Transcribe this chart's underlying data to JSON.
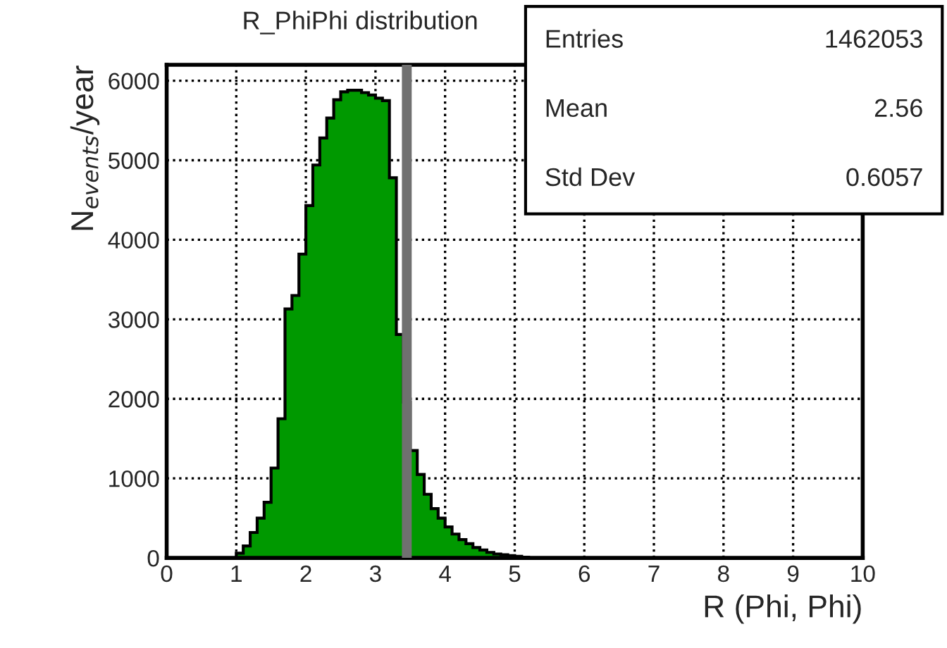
{
  "chart_data": {
    "type": "histogram",
    "title": "R_PhiPhi distribution",
    "xlabel": "R (Phi, Phi)",
    "ylabel": "N$_{events}$/year",
    "bins": [
      1.0,
      1.1,
      1.2,
      1.3,
      1.4,
      1.5,
      1.6,
      1.7,
      1.8,
      1.9,
      2.0,
      2.1,
      2.2,
      2.3,
      2.4,
      2.5,
      2.6,
      2.7,
      2.8,
      2.9,
      3.0,
      3.1,
      3.2,
      3.3,
      3.4,
      3.5,
      3.6,
      3.7,
      3.8,
      3.9,
      4.0,
      4.1,
      4.2,
      4.3,
      4.4,
      4.5,
      4.6,
      4.7,
      4.8,
      4.9,
      5.0,
      5.1,
      5.2
    ],
    "values": [
      60,
      150,
      320,
      500,
      700,
      1130,
      1750,
      3130,
      3300,
      3820,
      4430,
      4940,
      5280,
      5530,
      5760,
      5860,
      5880,
      5880,
      5850,
      5820,
      5780,
      5750,
      4780,
      2810,
      1960,
      1350,
      1050,
      800,
      620,
      500,
      390,
      300,
      230,
      180,
      130,
      100,
      70,
      50,
      40,
      30,
      20,
      10
    ],
    "color": "#009900",
    "xlim": [
      0,
      10
    ],
    "xticks": [
      0,
      1,
      2,
      3,
      4,
      5,
      6,
      7,
      8,
      9,
      10
    ],
    "ylim": [
      0,
      6200
    ],
    "yticks": [
      0,
      1000,
      2000,
      3000,
      4000,
      5000,
      6000
    ],
    "grid": true,
    "line_style": "dotted",
    "ref_lines": [
      {
        "axis": "x",
        "value": 3.45,
        "color": "#707070"
      }
    ],
    "annotations": [
      "Entries",
      "1462053",
      "Mean",
      "2.56",
      "Std Dev",
      "0.6057"
    ]
  }
}
